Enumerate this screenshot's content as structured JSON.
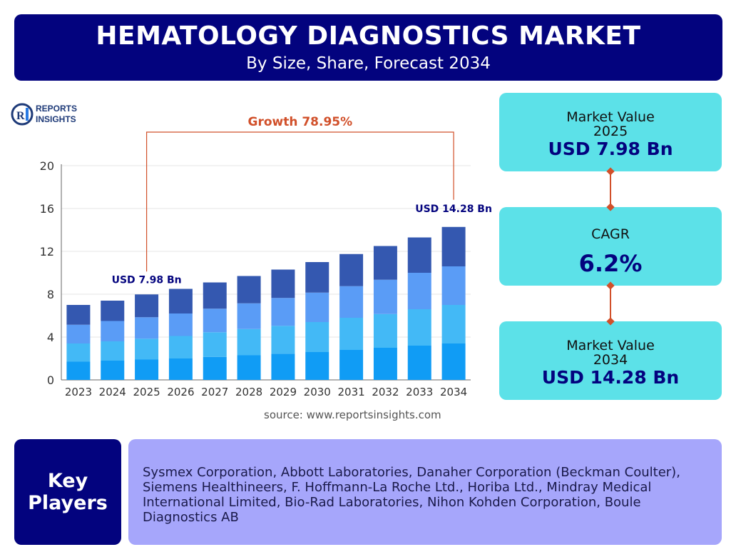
{
  "header": {
    "title": "HEMATOLOGY DIAGNOSTICS MARKET",
    "subtitle": "By Size, Share, Forecast 2034"
  },
  "logo": {
    "line1": "REPORTS",
    "line2": "INSIGHTS",
    "mark": "RI",
    "mark_color": "#1e3a78",
    "accent": "#2a7be4"
  },
  "chart_data": {
    "type": "bar",
    "stacked": true,
    "categories": [
      "2023",
      "2024",
      "2025",
      "2026",
      "2027",
      "2028",
      "2029",
      "2030",
      "2031",
      "2032",
      "2033",
      "2034"
    ],
    "series": [
      {
        "values": [
          1.7,
          1.8,
          1.9,
          2.0,
          2.15,
          2.3,
          2.45,
          2.6,
          2.8,
          3.0,
          3.2,
          3.4
        ],
        "color": "#109cf5"
      },
      {
        "values": [
          1.7,
          1.8,
          1.95,
          2.1,
          2.3,
          2.45,
          2.6,
          2.8,
          3.0,
          3.15,
          3.4,
          3.6
        ],
        "color": "#43b9f6"
      },
      {
        "values": [
          1.75,
          1.9,
          2.0,
          2.1,
          2.2,
          2.4,
          2.6,
          2.75,
          2.95,
          3.2,
          3.4,
          3.6
        ],
        "color": "#5a9cf6"
      },
      {
        "values": [
          1.85,
          1.9,
          2.13,
          2.3,
          2.45,
          2.55,
          2.65,
          2.85,
          3.0,
          3.15,
          3.3,
          3.68
        ],
        "color": "#3458b0"
      }
    ],
    "yticks": [
      0,
      4,
      8,
      12,
      16,
      20
    ],
    "ylim": [
      0,
      20
    ],
    "grid": true,
    "annotations": {
      "growth_label": "Growth 78.95%",
      "start_label": "USD 7.98 Bn",
      "end_label": "USD 14.28 Bn",
      "start_index": 2,
      "end_index": 11,
      "color": "#d1502a",
      "label_color": "#03037e"
    }
  },
  "source": "source: www.reportsinsights.com",
  "cards": [
    {
      "label": "Market Value",
      "year": "2025",
      "value": "USD 7.98 Bn"
    },
    {
      "label": "CAGR",
      "value": "6.2%"
    },
    {
      "label": "Market Value",
      "year": "2034",
      "value": "USD 14.28 Bn"
    }
  ],
  "key_players": {
    "label_line1": "Key",
    "label_line2": "Players",
    "text": "Sysmex Corporation, Abbott Laboratories, Danaher Corporation (Beckman Coulter), Siemens Healthineers, F. Hoffmann-La Roche Ltd., Horiba Ltd., Mindray Medical International Limited, Bio-Rad Laboratories, Nihon Kohden Corporation, Boule Diagnostics AB"
  }
}
